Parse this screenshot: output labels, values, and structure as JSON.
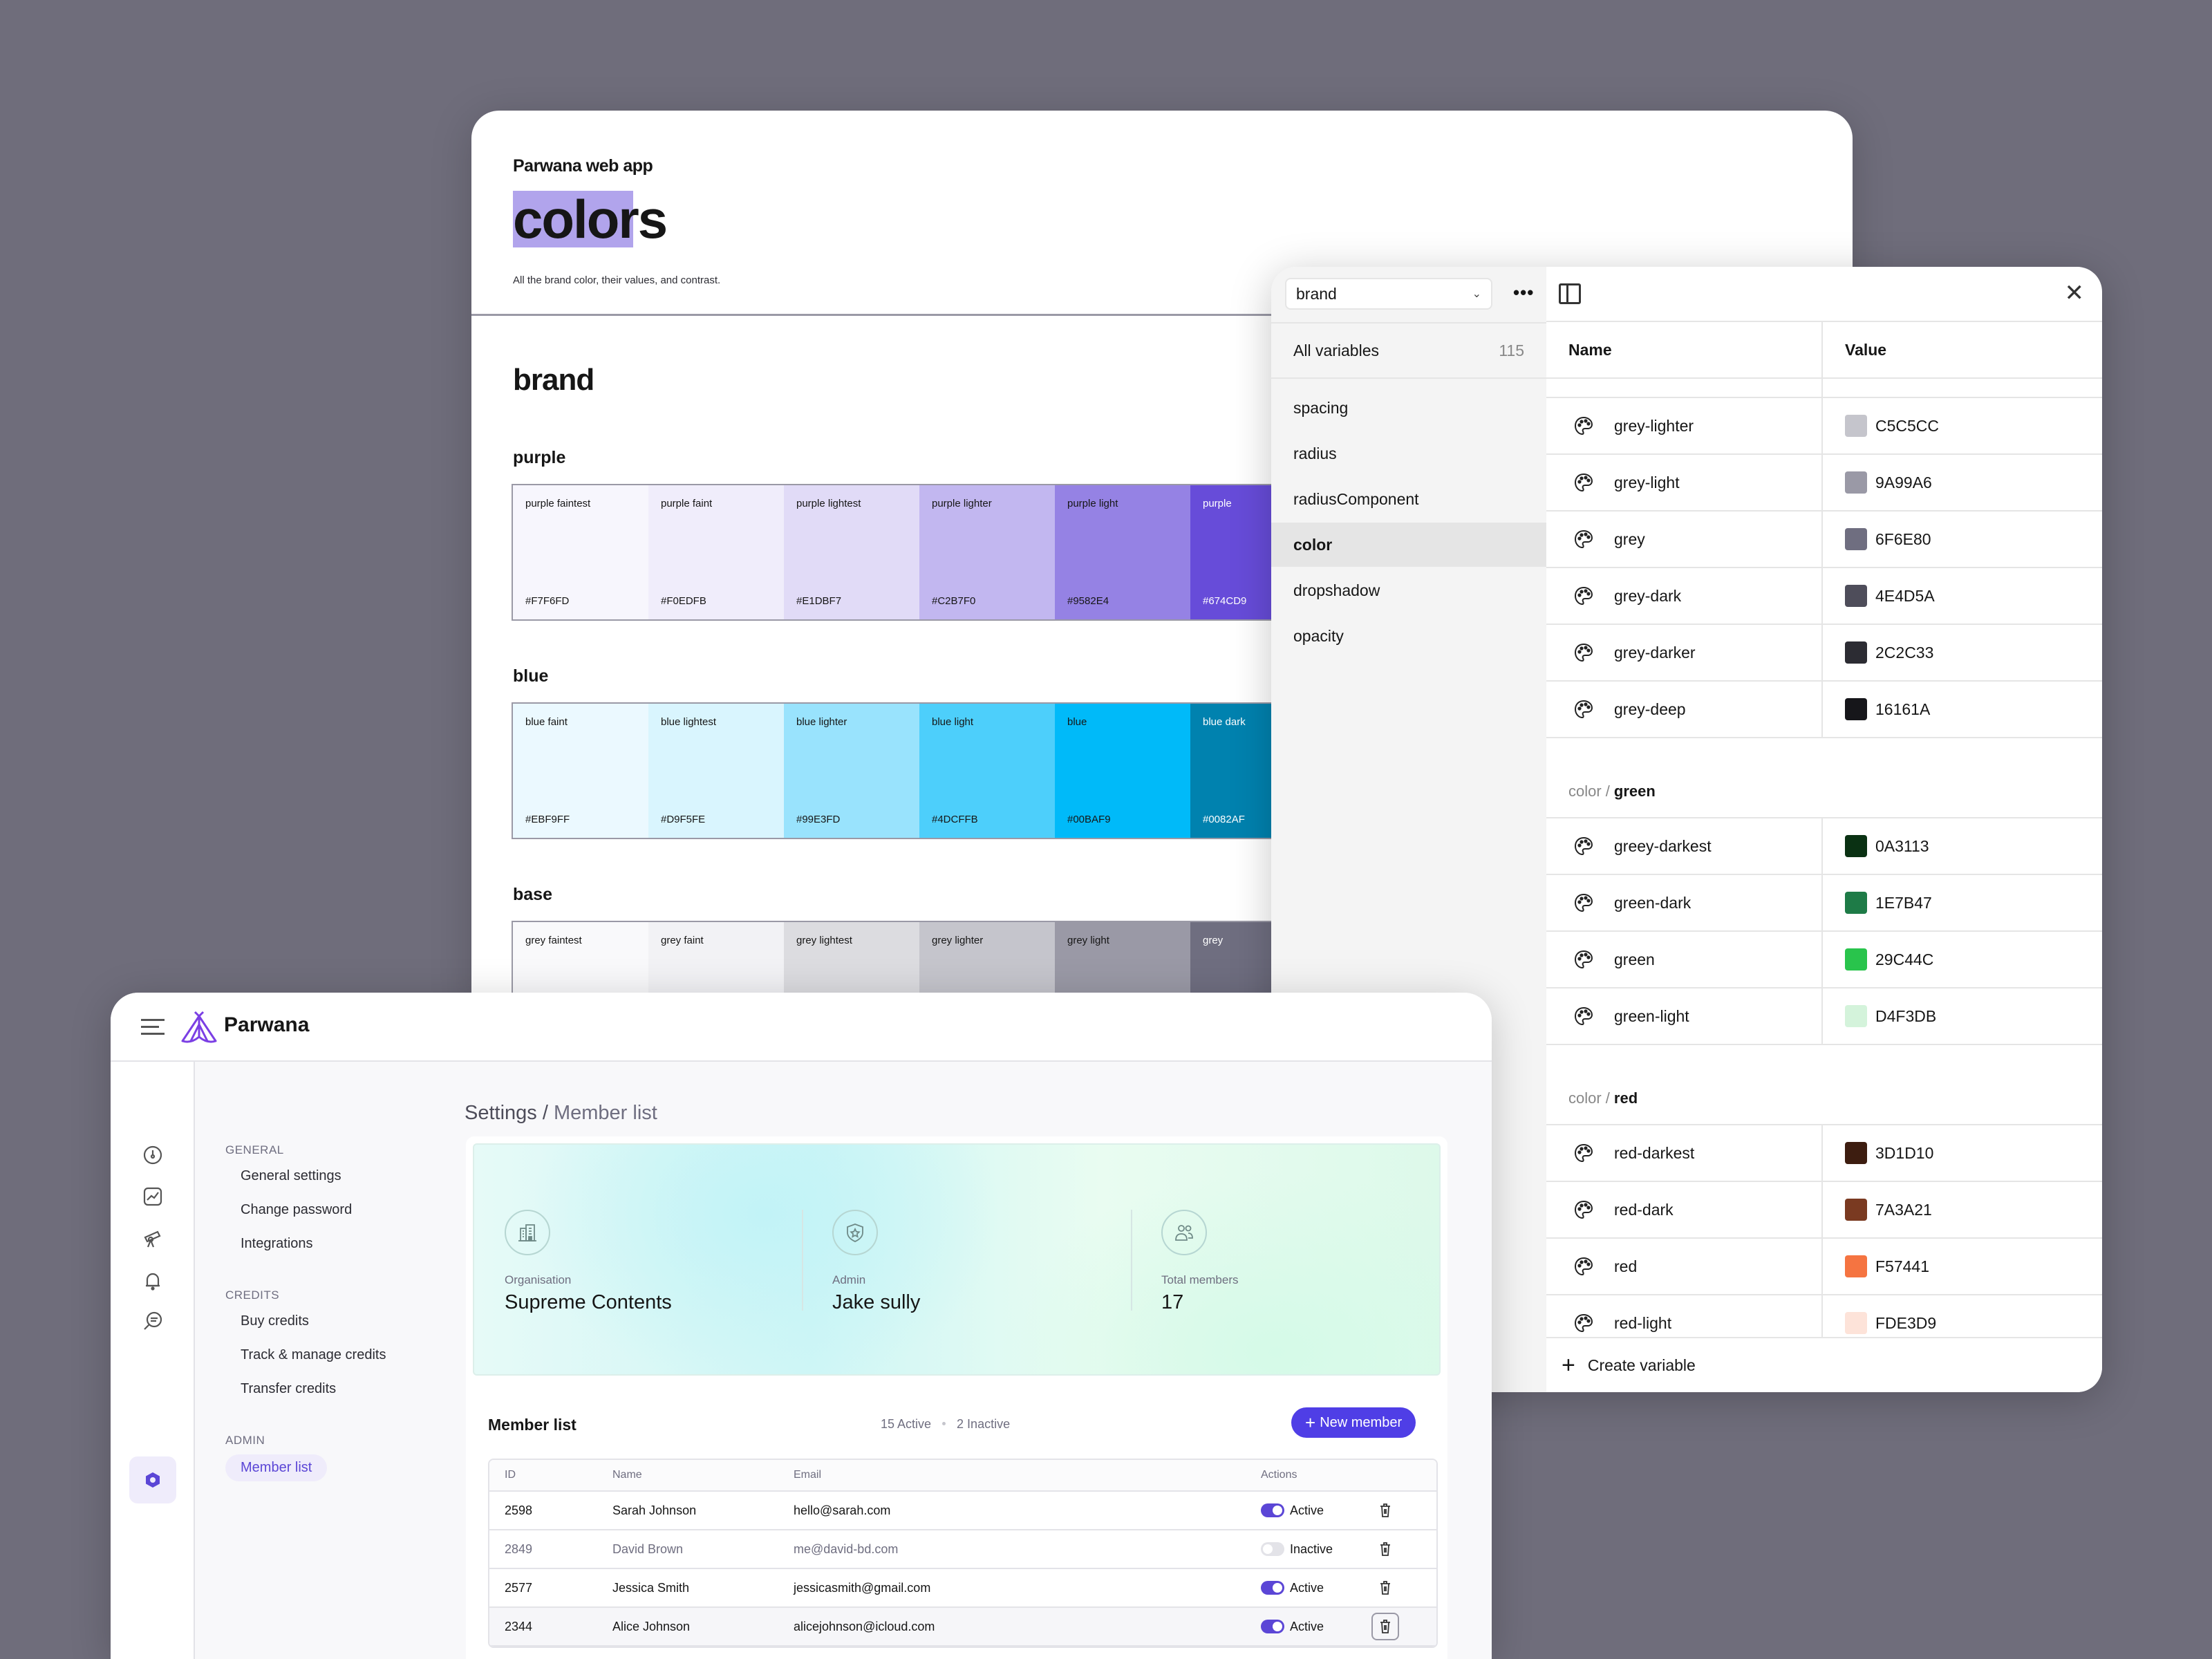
{
  "doc": {
    "app_name": "Parwana web app",
    "title": "colors",
    "description": "All the brand color, their values, and contrast.",
    "section": "brand",
    "groups": [
      {
        "name": "purple",
        "swatches": [
          {
            "label": "purple faintest",
            "hex": "#F7F6FD",
            "text": "#161616"
          },
          {
            "label": "purple faint",
            "hex": "#F0EDFB",
            "text": "#161616"
          },
          {
            "label": "purple lightest",
            "hex": "#E1DBF7",
            "text": "#161616"
          },
          {
            "label": "purple lighter",
            "hex": "#C2B7F0",
            "text": "#161616"
          },
          {
            "label": "purple light",
            "hex": "#9582E4",
            "text": "#161616"
          },
          {
            "label": "purple",
            "hex": "#674CD9",
            "text": "#FFFFFF"
          }
        ]
      },
      {
        "name": "blue",
        "swatches": [
          {
            "label": "blue faint",
            "hex": "#EBF9FF",
            "text": "#161616"
          },
          {
            "label": "blue lightest",
            "hex": "#D9F5FE",
            "text": "#161616"
          },
          {
            "label": "blue lighter",
            "hex": "#99E3FD",
            "text": "#161616"
          },
          {
            "label": "blue light",
            "hex": "#4DCFFB",
            "text": "#161616"
          },
          {
            "label": "blue",
            "hex": "#00BAF9",
            "text": "#161616"
          },
          {
            "label": "blue dark",
            "hex": "#0082AF",
            "text": "#FFFFFF"
          }
        ]
      },
      {
        "name": "base",
        "swatches": [
          {
            "label": "grey faintest",
            "hex": "",
            "color": "#F9F9FB",
            "text": "#161616"
          },
          {
            "label": "grey faint",
            "hex": "",
            "color": "#F2F2F5",
            "text": "#161616"
          },
          {
            "label": "grey lightest",
            "hex": "",
            "color": "#DCDCE0",
            "text": "#161616"
          },
          {
            "label": "grey lighter",
            "hex": "",
            "color": "#C5C5CC",
            "text": "#161616"
          },
          {
            "label": "grey light",
            "hex": "",
            "color": "#9A99A6",
            "text": "#161616"
          },
          {
            "label": "grey",
            "hex": "",
            "color": "#6F6E80",
            "text": "#FFFFFF"
          }
        ]
      }
    ]
  },
  "variables": {
    "collection": "brand",
    "all_label": "All variables",
    "all_count": "115",
    "categories": [
      "spacing",
      "radius",
      "radiusComponent",
      "color",
      "dropshadow",
      "opacity"
    ],
    "active_category": "color",
    "columns": {
      "name": "Name",
      "value": "Value"
    },
    "grey_rows": [
      {
        "name": "grey-lighter",
        "value": "C5C5CC"
      },
      {
        "name": "grey-light",
        "value": "9A99A6"
      },
      {
        "name": "grey",
        "value": "6F6E80"
      },
      {
        "name": "grey-dark",
        "value": "4E4D5A"
      },
      {
        "name": "grey-darker",
        "value": "2C2C33"
      },
      {
        "name": "grey-deep",
        "value": "16161A"
      }
    ],
    "green_group": {
      "prefix": "color /",
      "name": "green"
    },
    "green_rows": [
      {
        "name": "greey-darkest",
        "value": "0A3113"
      },
      {
        "name": "green-dark",
        "value": "1E7B47"
      },
      {
        "name": "green",
        "value": "29C44C"
      },
      {
        "name": "green-light",
        "value": "D4F3DB"
      }
    ],
    "red_group": {
      "prefix": "color /",
      "name": "red"
    },
    "red_rows": [
      {
        "name": "red-darkest",
        "value": "3D1D10"
      },
      {
        "name": "red-dark",
        "value": "7A3A21"
      },
      {
        "name": "red",
        "value": "F57441"
      },
      {
        "name": "red-light",
        "value": "FDE3D9"
      }
    ],
    "create_label": "Create variable"
  },
  "app": {
    "brand": "Parwana",
    "accent": "#5B46D6",
    "breadcrumb": {
      "root": "Settings",
      "sep": " / ",
      "current": "Member list"
    },
    "subnav": {
      "general_label": "GENERAL",
      "general_items": [
        "General settings",
        "Change password",
        "Integrations"
      ],
      "credits_label": "CREDITS",
      "credits_items": [
        "Buy credits",
        "Track & manage credits",
        "Transfer credits"
      ],
      "admin_label": "ADMIN",
      "admin_items": [
        "Member list"
      ]
    },
    "stats": [
      {
        "label": "Organisation",
        "value": "Supreme Contents"
      },
      {
        "label": "Admin",
        "value": "Jake sully"
      },
      {
        "label": "Total members",
        "value": "17"
      }
    ],
    "member_list": {
      "title": "Member list",
      "active_count": "15 Active",
      "inactive_count": "2 Inactive",
      "new_button": "New member",
      "columns": [
        "ID",
        "Name",
        "Email",
        "Actions"
      ],
      "rows": [
        {
          "id": "2598",
          "name": "Sarah Johnson",
          "email": "hello@sarah.com",
          "status": "Active"
        },
        {
          "id": "2849",
          "name": "David Brown",
          "email": "me@david-bd.com",
          "status": "Inactive"
        },
        {
          "id": "2577",
          "name": "Jessica Smith",
          "email": "jessicasmith@gmail.com",
          "status": "Active"
        },
        {
          "id": "2344",
          "name": "Alice Johnson",
          "email": "alicejohnson@icloud.com",
          "status": "Active"
        }
      ]
    }
  }
}
